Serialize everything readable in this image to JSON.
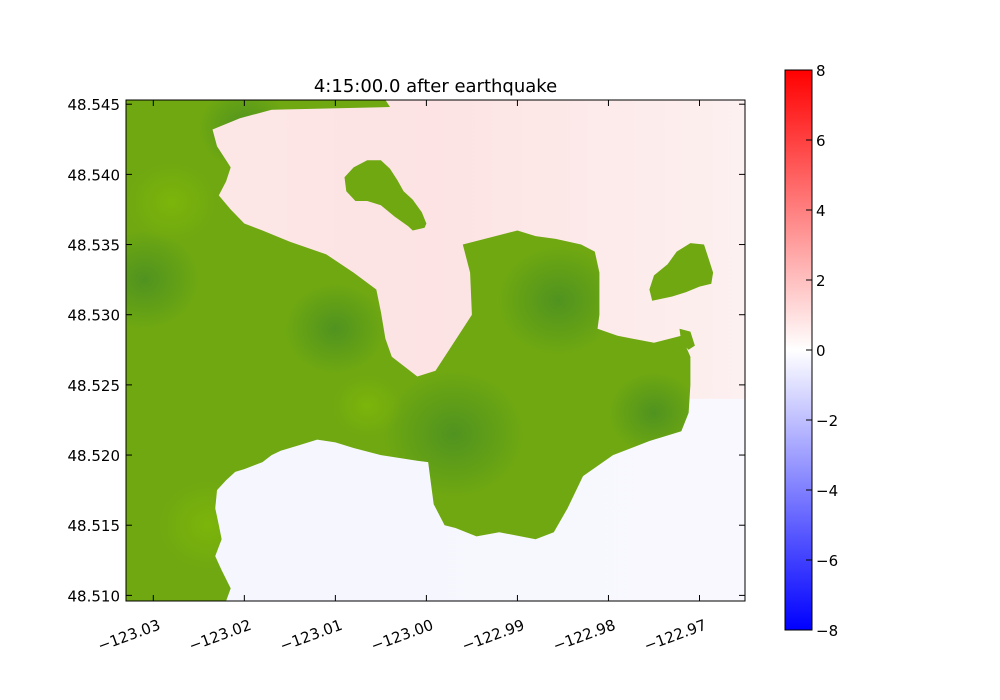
{
  "chart_data": [
    {
      "type": "heatmap",
      "title": "4:15:00.0 after earthquake",
      "xlabel": "",
      "ylabel": "",
      "xlim": [
        -123.033,
        -122.965
      ],
      "ylim": [
        48.5096,
        48.5453
      ],
      "x_ticks": [
        -123.03,
        -123.02,
        -123.01,
        -123.0,
        -122.99,
        -122.98,
        -122.97
      ],
      "x_tick_labels": [
        "−123.03",
        "−123.02",
        "−123.01",
        "−123.00",
        "−122.99",
        "−122.98",
        "−122.97"
      ],
      "y_ticks": [
        48.51,
        48.515,
        48.52,
        48.525,
        48.53,
        48.535,
        48.54,
        48.545
      ],
      "y_tick_labels": [
        "48.510",
        "48.515",
        "48.520",
        "48.525",
        "48.530",
        "48.535",
        "48.540",
        "48.545"
      ],
      "grid": false,
      "land_color": "#6fa811",
      "land_color_dark": "#4f9420",
      "water_north_color": "#fdeeee",
      "water_south_color": "#f6f6fe",
      "land_regions": [
        {
          "name": "western land",
          "polygon": [
            [
              -123.033,
              48.5453
            ],
            [
              -123.0045,
              48.5453
            ],
            [
              -123.004,
              48.5448
            ],
            [
              -123.017,
              48.5446
            ],
            [
              -123.0205,
              48.544
            ],
            [
              -123.0235,
              48.5432
            ],
            [
              -123.023,
              48.542
            ],
            [
              -123.022,
              48.541
            ],
            [
              -123.0215,
              48.5405
            ],
            [
              -123.022,
              48.5395
            ],
            [
              -123.0228,
              48.5385
            ],
            [
              -123.0215,
              48.5375
            ],
            [
              -123.02,
              48.5365
            ],
            [
              -123.018,
              48.536
            ],
            [
              -123.015,
              48.5352
            ],
            [
              -123.011,
              48.5343
            ],
            [
              -123.008,
              48.533
            ],
            [
              -123.0055,
              48.5318
            ],
            [
              -123.005,
              48.5302
            ],
            [
              -123.0045,
              48.5283
            ],
            [
              -123.0038,
              48.527
            ],
            [
              -123.001,
              48.5256
            ],
            [
              -122.999,
              48.526
            ],
            [
              -122.9965,
              48.5285
            ],
            [
              -122.995,
              48.53
            ],
            [
              -122.9952,
              48.533
            ],
            [
              -122.996,
              48.535
            ],
            [
              -122.993,
              48.5355
            ],
            [
              -122.99,
              48.536
            ],
            [
              -122.988,
              48.5356
            ],
            [
              -122.9858,
              48.5354
            ],
            [
              -122.983,
              48.535
            ],
            [
              -122.9815,
              48.5345
            ],
            [
              -122.981,
              48.533
            ],
            [
              -122.981,
              48.53
            ],
            [
              -122.9812,
              48.529
            ],
            [
              -122.979,
              48.5285
            ],
            [
              -122.975,
              48.528
            ],
            [
              -122.972,
              48.5285
            ],
            [
              -122.971,
              48.527
            ],
            [
              -122.971,
              48.525
            ],
            [
              -122.9712,
              48.523
            ],
            [
              -122.972,
              48.5217
            ],
            [
              -122.9755,
              48.521
            ],
            [
              -122.9795,
              48.52
            ],
            [
              -122.9828,
              48.5185
            ],
            [
              -122.9845,
              48.5162
            ],
            [
              -122.986,
              48.5145
            ],
            [
              -122.988,
              48.514
            ],
            [
              -122.992,
              48.5145
            ],
            [
              -122.9945,
              48.5142
            ],
            [
              -122.9968,
              48.5148
            ],
            [
              -122.998,
              48.515
            ],
            [
              -122.9992,
              48.5165
            ],
            [
              -122.9995,
              48.518
            ],
            [
              -122.9998,
              48.5195
            ],
            [
              -123.001,
              48.5196
            ],
            [
              -123.005,
              48.52
            ],
            [
              -123.008,
              48.5205
            ],
            [
              -123.01,
              48.5209
            ],
            [
              -123.012,
              48.5211
            ],
            [
              -123.014,
              48.5207
            ],
            [
              -123.016,
              48.5203
            ],
            [
              -123.017,
              48.52
            ],
            [
              -123.018,
              48.5195
            ],
            [
              -123.02,
              48.519
            ],
            [
              -123.021,
              48.5188
            ],
            [
              -123.022,
              48.5182
            ],
            [
              -123.023,
              48.5175
            ],
            [
              -123.0232,
              48.5162
            ],
            [
              -123.0228,
              48.515
            ],
            [
              -123.0225,
              48.514
            ],
            [
              -123.0232,
              48.5128
            ],
            [
              -123.0225,
              48.5118
            ],
            [
              -123.0215,
              48.5105
            ],
            [
              -123.022,
              48.5096
            ],
            [
              -123.033,
              48.5096
            ]
          ]
        },
        {
          "name": "central island",
          "polygon": [
            [
              -123.0065,
              48.541
            ],
            [
              -123.005,
              48.541
            ],
            [
              -123.004,
              48.5404
            ],
            [
              -123.0032,
              48.5396
            ],
            [
              -123.0025,
              48.5388
            ],
            [
              -123.0015,
              48.5382
            ],
            [
              -123.0005,
              48.5373
            ],
            [
              -123.0,
              48.5365
            ],
            [
              -123.0002,
              48.5362
            ],
            [
              -123.0015,
              48.536
            ],
            [
              -123.002,
              48.5363
            ],
            [
              -123.0035,
              48.537
            ],
            [
              -123.005,
              48.5378
            ],
            [
              -123.0065,
              48.5381
            ],
            [
              -123.0078,
              48.5381
            ],
            [
              -123.0088,
              48.5388
            ],
            [
              -123.009,
              48.5398
            ],
            [
              -123.008,
              48.5405
            ]
          ]
        },
        {
          "name": "eastern island",
          "polygon": [
            [
              -122.971,
              48.5351
            ],
            [
              -122.9695,
              48.535
            ],
            [
              -122.969,
              48.534
            ],
            [
              -122.9685,
              48.533
            ],
            [
              -122.9687,
              48.5322
            ],
            [
              -122.97,
              48.532
            ],
            [
              -122.9715,
              48.5316
            ],
            [
              -122.973,
              48.5313
            ],
            [
              -122.9752,
              48.531
            ],
            [
              -122.9755,
              48.5318
            ],
            [
              -122.975,
              48.5328
            ],
            [
              -122.9735,
              48.5336
            ],
            [
              -122.9725,
              48.5345
            ]
          ]
        },
        {
          "name": "east islet",
          "polygon": [
            [
              -122.9722,
              48.529
            ],
            [
              -122.971,
              48.5288
            ],
            [
              -122.9705,
              48.5278
            ],
            [
              -122.9712,
              48.5275
            ],
            [
              -122.972,
              48.528
            ]
          ]
        }
      ],
      "colorbar": {
        "vmin": -8,
        "vmax": 8,
        "ticks": [
          -8,
          -6,
          -4,
          -2,
          0,
          2,
          4,
          6,
          8
        ],
        "tick_labels": [
          "−8",
          "−6",
          "−4",
          "−2",
          "0",
          "2",
          "4",
          "6",
          "8"
        ],
        "colors": [
          "#0000ff",
          "#ffffff",
          "#ff0000"
        ]
      }
    }
  ]
}
